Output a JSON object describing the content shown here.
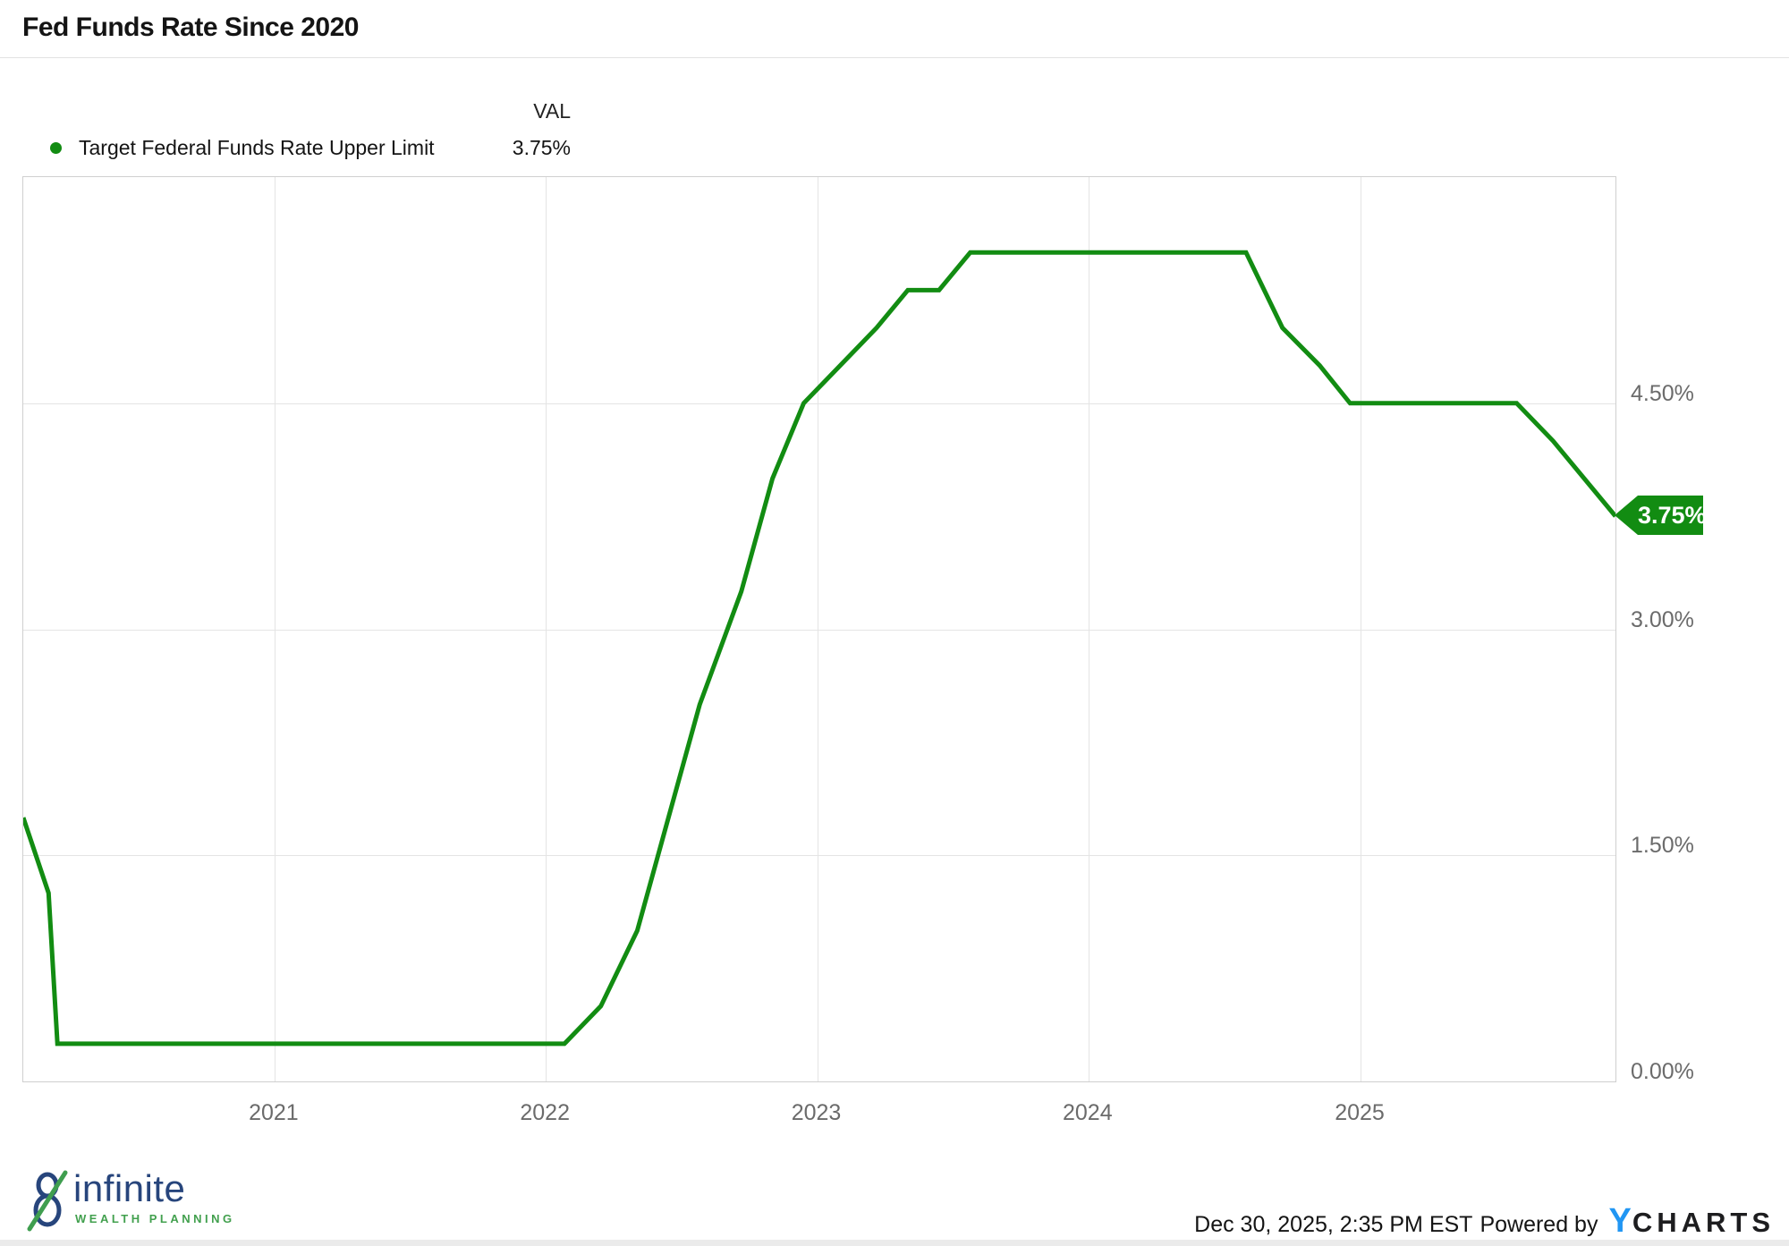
{
  "header": {
    "title": "Fed Funds Rate Since 2020"
  },
  "legend": {
    "val_header": "VAL",
    "series_label": "Target Federal Funds Rate Upper Limit",
    "series_value": "3.75%",
    "dot_color": "#128c12"
  },
  "chart_data": {
    "type": "line",
    "title": "Fed Funds Rate Since 2020",
    "xlabel": "",
    "ylabel": "",
    "grid": true,
    "legend_position": "top-left",
    "x_range": [
      "2020-01-29",
      "2025-12-10"
    ],
    "y_range": [
      0,
      6
    ],
    "x_ticks": [
      {
        "label": "2021",
        "date": "2021-01-01"
      },
      {
        "label": "2022",
        "date": "2022-01-01"
      },
      {
        "label": "2023",
        "date": "2023-01-01"
      },
      {
        "label": "2024",
        "date": "2024-01-01"
      },
      {
        "label": "2025",
        "date": "2025-01-01"
      }
    ],
    "y_ticks": [
      {
        "label": "4.50%",
        "value": 4.5
      },
      {
        "label": "3.00%",
        "value": 3.0
      },
      {
        "label": "1.50%",
        "value": 1.5
      },
      {
        "label": "0.00%",
        "value": 0.0
      }
    ],
    "series": [
      {
        "name": "Target Federal Funds Rate Upper Limit",
        "color": "#128c12",
        "points": [
          [
            "2020-01-29",
            1.75
          ],
          [
            "2020-03-03",
            1.25
          ],
          [
            "2020-03-15",
            0.25
          ],
          [
            "2020-04-29",
            0.25
          ],
          [
            "2020-06-10",
            0.25
          ],
          [
            "2020-07-29",
            0.25
          ],
          [
            "2020-09-16",
            0.25
          ],
          [
            "2020-11-05",
            0.25
          ],
          [
            "2020-12-16",
            0.25
          ],
          [
            "2021-01-27",
            0.25
          ],
          [
            "2021-03-17",
            0.25
          ],
          [
            "2021-04-28",
            0.25
          ],
          [
            "2021-06-16",
            0.25
          ],
          [
            "2021-07-28",
            0.25
          ],
          [
            "2021-09-22",
            0.25
          ],
          [
            "2021-11-03",
            0.25
          ],
          [
            "2021-12-15",
            0.25
          ],
          [
            "2022-01-26",
            0.25
          ],
          [
            "2022-03-16",
            0.5
          ],
          [
            "2022-05-04",
            1.0
          ],
          [
            "2022-06-15",
            1.75
          ],
          [
            "2022-07-27",
            2.5
          ],
          [
            "2022-09-21",
            3.25
          ],
          [
            "2022-11-02",
            4.0
          ],
          [
            "2022-12-14",
            4.5
          ],
          [
            "2023-02-01",
            4.75
          ],
          [
            "2023-03-22",
            5.0
          ],
          [
            "2023-05-03",
            5.25
          ],
          [
            "2023-06-14",
            5.25
          ],
          [
            "2023-07-26",
            5.5
          ],
          [
            "2023-09-20",
            5.5
          ],
          [
            "2023-11-01",
            5.5
          ],
          [
            "2023-12-13",
            5.5
          ],
          [
            "2024-01-31",
            5.5
          ],
          [
            "2024-03-20",
            5.5
          ],
          [
            "2024-05-01",
            5.5
          ],
          [
            "2024-06-12",
            5.5
          ],
          [
            "2024-07-31",
            5.5
          ],
          [
            "2024-09-18",
            5.0
          ],
          [
            "2024-11-07",
            4.75
          ],
          [
            "2024-12-18",
            4.5
          ],
          [
            "2025-01-29",
            4.5
          ],
          [
            "2025-03-19",
            4.5
          ],
          [
            "2025-05-07",
            4.5
          ],
          [
            "2025-06-18",
            4.5
          ],
          [
            "2025-07-30",
            4.5
          ],
          [
            "2025-09-17",
            4.25
          ],
          [
            "2025-10-29",
            4.0
          ],
          [
            "2025-12-10",
            3.75
          ]
        ]
      }
    ],
    "end_label": {
      "text": "3.75%",
      "value": 3.75,
      "color": "#128c12"
    }
  },
  "footer": {
    "logo": {
      "name": "infinite",
      "subtitle": "WEALTH PLANNING",
      "name_color": "#27457c",
      "subtitle_color": "#42a04e",
      "slash_color": "#3f9e4f"
    },
    "timestamp": "Dec 30, 2025, 2:35 PM EST",
    "powered_by": "Powered by",
    "brand": {
      "y": "Y",
      "charts": "CHARTS",
      "y_color": "#2196f3"
    }
  }
}
